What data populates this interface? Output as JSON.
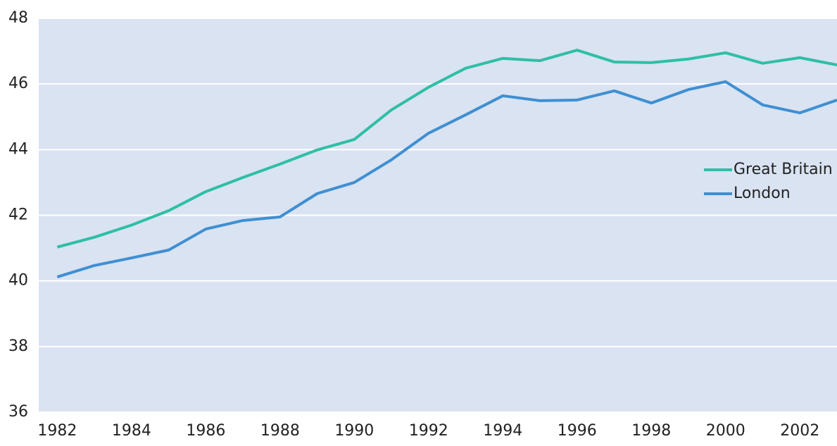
{
  "chart_data": {
    "type": "line",
    "x": [
      1982,
      1983,
      1984,
      1985,
      1986,
      1987,
      1988,
      1989,
      1990,
      1991,
      1992,
      1993,
      1994,
      1995,
      1996,
      1997,
      1998,
      1999,
      2000,
      2001,
      2002,
      2003
    ],
    "series": [
      {
        "name": "Great Britain",
        "color": "#2ebfa5",
        "values": [
          41.03,
          41.33,
          41.7,
          42.14,
          42.72,
          43.15,
          43.56,
          43.99,
          44.31,
          45.21,
          45.9,
          46.48,
          46.78,
          46.71,
          47.03,
          46.67,
          46.65,
          46.76,
          46.95,
          46.63,
          46.8,
          46.58
        ]
      },
      {
        "name": "London",
        "color": "#3f8fd2",
        "values": [
          40.12,
          40.47,
          40.7,
          40.94,
          41.58,
          41.84,
          41.95,
          42.66,
          43.0,
          43.69,
          44.5,
          45.06,
          45.64,
          45.49,
          45.51,
          45.79,
          45.42,
          45.83,
          46.07,
          45.36,
          45.12,
          45.51
        ]
      }
    ],
    "xlim": [
      1981.5,
      2003
    ],
    "xticks": [
      1982,
      1984,
      1986,
      1988,
      1990,
      1992,
      1994,
      1996,
      1998,
      2000,
      2002
    ],
    "ylim": [
      36,
      48
    ],
    "yticks": [
      36,
      38,
      40,
      42,
      44,
      46,
      48
    ],
    "grid": true,
    "legend": "right",
    "background": "#d9e3f2"
  }
}
